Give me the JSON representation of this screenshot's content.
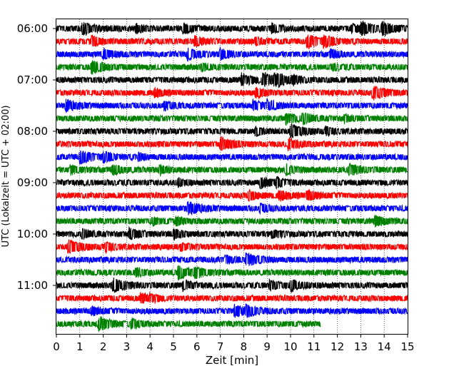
{
  "chart_data": {
    "type": "line",
    "title": "",
    "xlabel": "Zeit  [min]",
    "ylabel": "UTC (Lokalzeit = UTC + 02:00)",
    "xlim": [
      0,
      15
    ],
    "x_ticks": [
      "0",
      "1",
      "2",
      "3",
      "4",
      "5",
      "6",
      "7",
      "8",
      "9",
      "10",
      "11",
      "12",
      "13",
      "14",
      "15"
    ],
    "y_ticks": [
      "06:00",
      "07:00",
      "08:00",
      "09:00",
      "10:00",
      "11:00"
    ],
    "trace_interval_minutes": 15,
    "start_time": "06:00",
    "color_cycle": [
      "#000000",
      "#ff0000",
      "#0000ff",
      "#008000"
    ],
    "grid": "vertical dotted",
    "last_trace_end_minute": 11.3,
    "traces": [
      {
        "time": "06:00",
        "color": "#000000",
        "events": [
          {
            "t": 1.1,
            "amp": 0.9
          },
          {
            "t": 3.4,
            "amp": 0.6
          },
          {
            "t": 5.4,
            "amp": 0.7
          },
          {
            "t": 9.2,
            "amp": 0.6
          },
          {
            "t": 12.6,
            "amp": 0.6
          },
          {
            "t": 13.0,
            "amp": 0.9
          },
          {
            "t": 13.9,
            "amp": 0.9
          }
        ]
      },
      {
        "time": "06:15",
        "color": "#ff0000",
        "events": [
          {
            "t": 1.5,
            "amp": 0.7
          },
          {
            "t": 5.9,
            "amp": 0.7
          },
          {
            "t": 8.5,
            "amp": 0.5
          },
          {
            "t": 10.7,
            "amp": 1.0
          },
          {
            "t": 11.4,
            "amp": 0.8
          }
        ]
      },
      {
        "time": "06:30",
        "color": "#0000ff",
        "events": [
          {
            "t": 2.0,
            "amp": 0.7
          },
          {
            "t": 5.6,
            "amp": 0.8
          },
          {
            "t": 7.0,
            "amp": 0.7
          },
          {
            "t": 11.7,
            "amp": 0.6
          }
        ]
      },
      {
        "time": "06:45",
        "color": "#008000",
        "events": [
          {
            "t": 1.5,
            "amp": 1.0
          },
          {
            "t": 6.2,
            "amp": 0.5
          },
          {
            "t": 11.8,
            "amp": 0.5
          }
        ]
      },
      {
        "time": "07:00",
        "color": "#000000",
        "events": [
          {
            "t": 7.9,
            "amp": 0.9
          },
          {
            "t": 8.8,
            "amp": 1.0
          },
          {
            "t": 9.3,
            "amp": 1.0
          },
          {
            "t": 10.1,
            "amp": 0.5
          }
        ]
      },
      {
        "time": "07:15",
        "color": "#ff0000",
        "events": [
          {
            "t": 4.2,
            "amp": 0.6
          },
          {
            "t": 8.5,
            "amp": 0.7
          },
          {
            "t": 13.5,
            "amp": 1.0
          }
        ]
      },
      {
        "time": "07:30",
        "color": "#0000ff",
        "events": [
          {
            "t": 0.4,
            "amp": 0.8
          },
          {
            "t": 4.6,
            "amp": 0.6
          },
          {
            "t": 8.4,
            "amp": 0.7
          },
          {
            "t": 9.0,
            "amp": 0.7
          }
        ]
      },
      {
        "time": "07:45",
        "color": "#008000",
        "events": [
          {
            "t": 9.8,
            "amp": 0.8
          },
          {
            "t": 10.5,
            "amp": 0.7
          },
          {
            "t": 12.3,
            "amp": 0.5
          }
        ]
      },
      {
        "time": "08:00",
        "color": "#000000",
        "events": [
          {
            "t": 8.5,
            "amp": 0.6
          },
          {
            "t": 10.0,
            "amp": 1.0
          },
          {
            "t": 11.5,
            "amp": 0.5
          }
        ]
      },
      {
        "time": "08:15",
        "color": "#ff0000",
        "events": [
          {
            "t": 7.0,
            "amp": 1.0
          },
          {
            "t": 9.9,
            "amp": 0.8
          }
        ]
      },
      {
        "time": "08:30",
        "color": "#0000ff",
        "events": [
          {
            "t": 1.0,
            "amp": 1.0
          },
          {
            "t": 2.0,
            "amp": 0.7
          },
          {
            "t": 3.5,
            "amp": 0.5
          }
        ]
      },
      {
        "time": "08:45",
        "color": "#008000",
        "events": [
          {
            "t": 0.6,
            "amp": 0.6
          },
          {
            "t": 2.4,
            "amp": 0.7
          },
          {
            "t": 4.4,
            "amp": 0.6
          },
          {
            "t": 9.8,
            "amp": 0.7
          },
          {
            "t": 12.5,
            "amp": 0.8
          }
        ]
      },
      {
        "time": "09:00",
        "color": "#000000",
        "events": [
          {
            "t": 5.2,
            "amp": 0.5
          },
          {
            "t": 8.7,
            "amp": 0.8
          },
          {
            "t": 9.4,
            "amp": 0.6
          }
        ]
      },
      {
        "time": "09:15",
        "color": "#ff0000",
        "events": [
          {
            "t": 8.2,
            "amp": 0.7
          },
          {
            "t": 9.5,
            "amp": 0.7
          },
          {
            "t": 10.7,
            "amp": 0.7
          }
        ]
      },
      {
        "time": "09:30",
        "color": "#0000ff",
        "events": [
          {
            "t": 5.6,
            "amp": 1.0
          },
          {
            "t": 8.7,
            "amp": 0.6
          }
        ]
      },
      {
        "time": "09:45",
        "color": "#008000",
        "events": [
          {
            "t": 4.1,
            "amp": 0.5
          },
          {
            "t": 5.1,
            "amp": 0.6
          },
          {
            "t": 13.6,
            "amp": 0.7
          }
        ]
      },
      {
        "time": "10:00",
        "color": "#000000",
        "events": [
          {
            "t": 1.1,
            "amp": 0.6
          },
          {
            "t": 3.1,
            "amp": 0.8
          },
          {
            "t": 5.0,
            "amp": 0.7
          },
          {
            "t": 9.2,
            "amp": 0.6
          }
        ]
      },
      {
        "time": "10:15",
        "color": "#ff0000",
        "events": [
          {
            "t": 0.5,
            "amp": 1.0
          },
          {
            "t": 2.1,
            "amp": 0.6
          },
          {
            "t": 5.3,
            "amp": 0.5
          }
        ]
      },
      {
        "time": "10:30",
        "color": "#0000ff",
        "events": [
          {
            "t": 8.1,
            "amp": 1.0
          },
          {
            "t": 7.2,
            "amp": 0.6
          }
        ]
      },
      {
        "time": "10:45",
        "color": "#008000",
        "events": [
          {
            "t": 3.4,
            "amp": 0.6
          },
          {
            "t": 5.2,
            "amp": 1.0
          },
          {
            "t": 5.9,
            "amp": 0.7
          }
        ]
      },
      {
        "time": "11:00",
        "color": "#000000",
        "events": [
          {
            "t": 2.4,
            "amp": 1.0
          },
          {
            "t": 5.4,
            "amp": 0.7
          },
          {
            "t": 9.1,
            "amp": 0.7
          },
          {
            "t": 10.0,
            "amp": 0.8
          }
        ]
      },
      {
        "time": "11:15",
        "color": "#ff0000",
        "events": [
          {
            "t": 3.6,
            "amp": 0.7
          },
          {
            "t": 4.0,
            "amp": 0.5
          }
        ]
      },
      {
        "time": "11:30",
        "color": "#0000ff",
        "events": [
          {
            "t": 1.5,
            "amp": 0.6
          },
          {
            "t": 7.6,
            "amp": 0.8
          },
          {
            "t": 8.1,
            "amp": 0.8
          }
        ]
      },
      {
        "time": "11:45",
        "color": "#008000",
        "events": [
          {
            "t": 1.8,
            "amp": 1.0
          },
          {
            "t": 3.2,
            "amp": 0.6
          }
        ]
      }
    ]
  }
}
